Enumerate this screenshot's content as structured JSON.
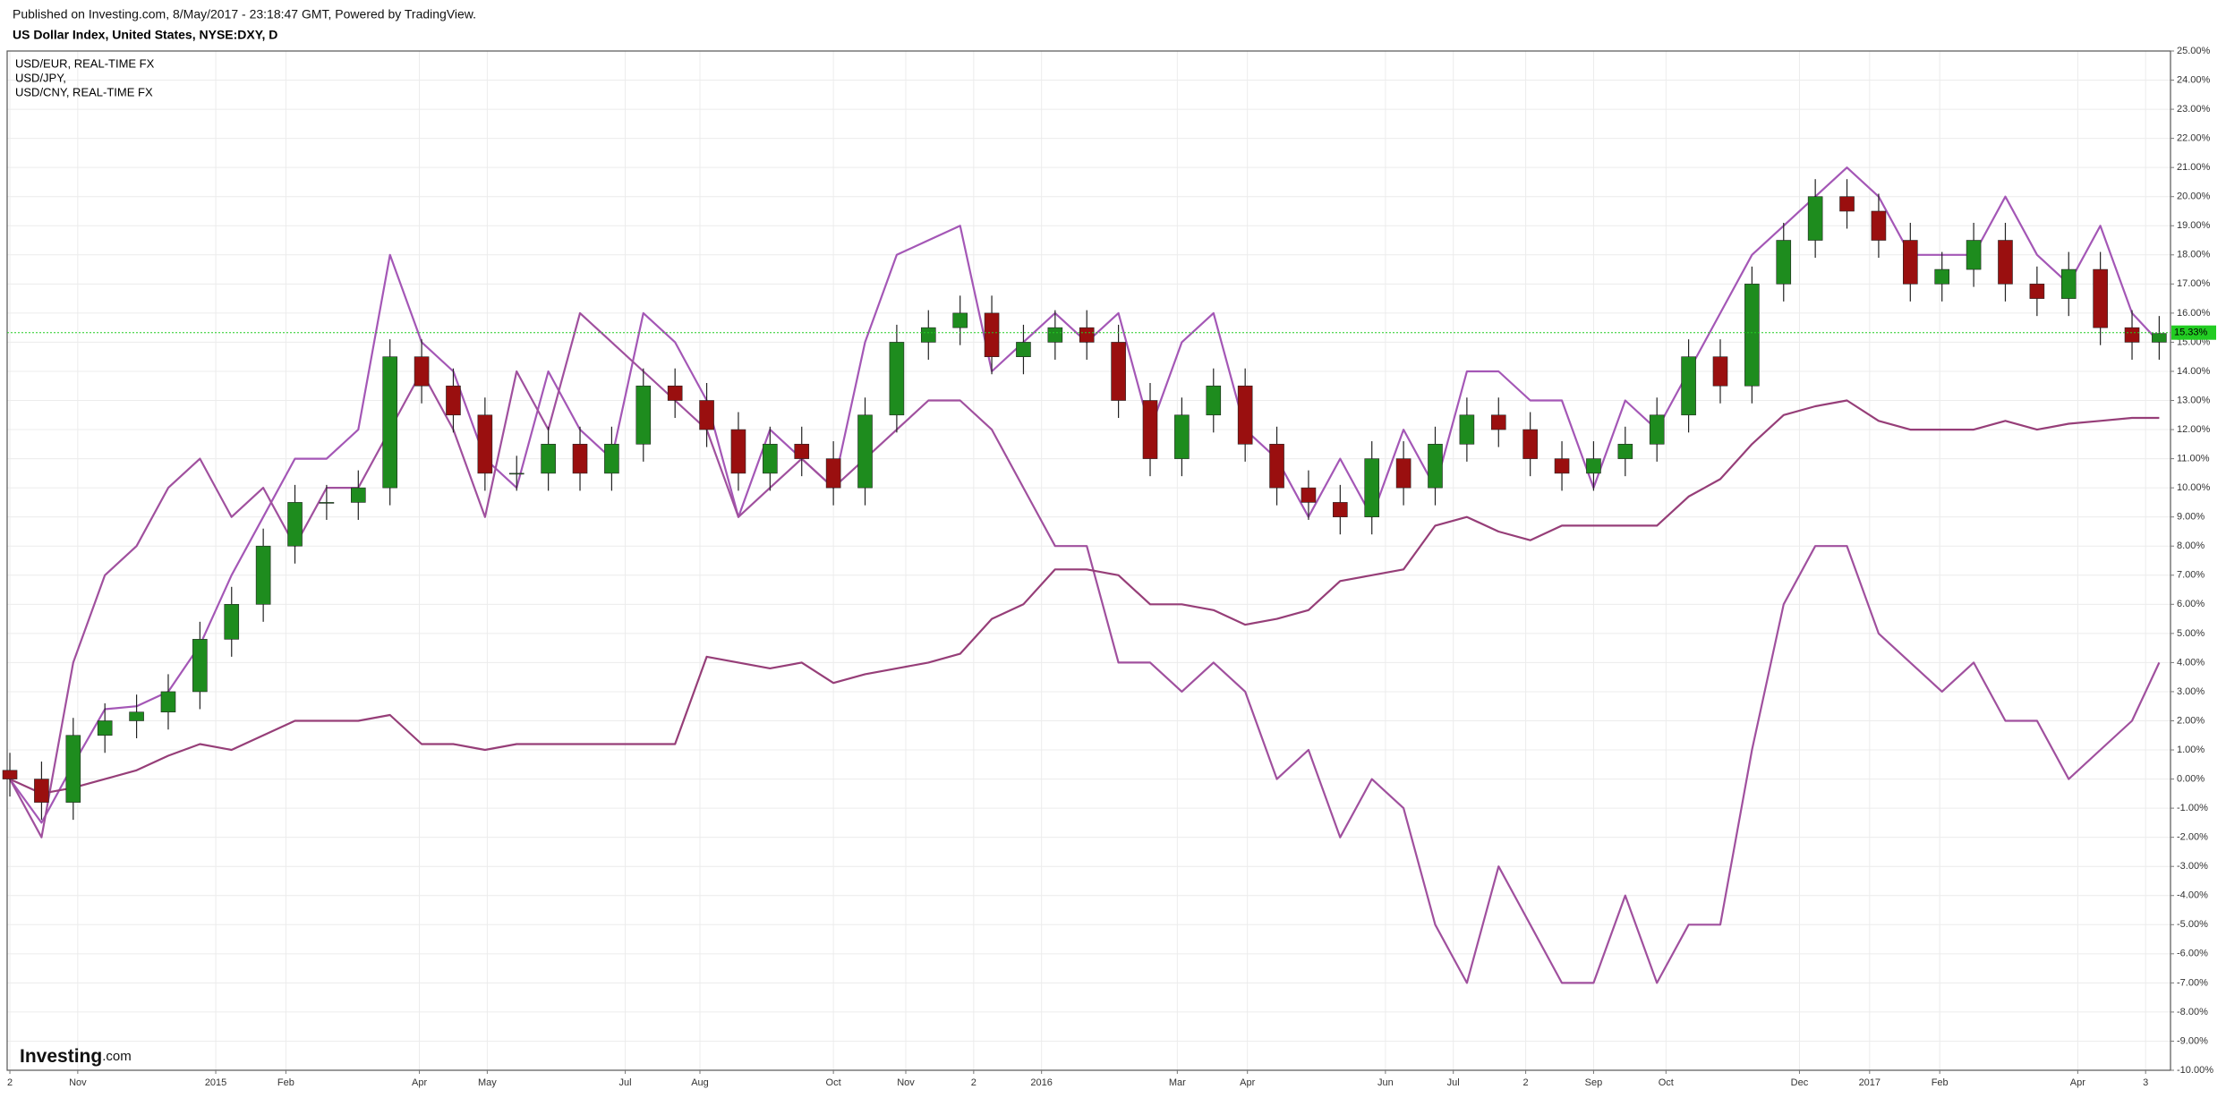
{
  "header": {
    "published": "Published on Investing.com, 8/May/2017 - 23:18:47 GMT, Powered by TradingView."
  },
  "logo": {
    "name": "Investing",
    "suffix": ".com"
  },
  "chart_data": {
    "type": "candlestick",
    "title": "US Dollar Index, United States, NYSE:DXY, D",
    "xlim": [
      -1.2,
      955
    ],
    "xticks": [
      {
        "value": 0,
        "label": "2"
      },
      {
        "value": 30,
        "label": "Nov"
      },
      {
        "value": 91,
        "label": "2015"
      },
      {
        "value": 122,
        "label": "Feb"
      },
      {
        "value": 181,
        "label": "Apr"
      },
      {
        "value": 211,
        "label": "May"
      },
      {
        "value": 272,
        "label": "Jul"
      },
      {
        "value": 305,
        "label": "Aug"
      },
      {
        "value": 364,
        "label": "Oct"
      },
      {
        "value": 396,
        "label": "Nov"
      },
      {
        "value": 426,
        "label": "2"
      },
      {
        "value": 456,
        "label": "2016"
      },
      {
        "value": 516,
        "label": "Mar"
      },
      {
        "value": 547,
        "label": "Apr"
      },
      {
        "value": 608,
        "label": "Jun"
      },
      {
        "value": 638,
        "label": "Jul"
      },
      {
        "value": 670,
        "label": "2"
      },
      {
        "value": 700,
        "label": "Sep"
      },
      {
        "value": 732,
        "label": "Oct"
      },
      {
        "value": 791,
        "label": "Dec"
      },
      {
        "value": 822,
        "label": "2017"
      },
      {
        "value": 853,
        "label": "Feb"
      },
      {
        "value": 914,
        "label": "Apr"
      },
      {
        "value": 944,
        "label": "3"
      }
    ],
    "ylim": [
      -10,
      25
    ],
    "yticks": [
      {
        "value": -10,
        "label": "-10.00%"
      },
      {
        "value": -9,
        "label": "-9.00%"
      },
      {
        "value": -8,
        "label": "-8.00%"
      },
      {
        "value": -7,
        "label": "-7.00%"
      },
      {
        "value": -6,
        "label": "-6.00%"
      },
      {
        "value": -5,
        "label": "-5.00%"
      },
      {
        "value": -4,
        "label": "-4.00%"
      },
      {
        "value": -3,
        "label": "-3.00%"
      },
      {
        "value": -2,
        "label": "-2.00%"
      },
      {
        "value": -1,
        "label": "-1.00%"
      },
      {
        "value": 0,
        "label": "0.00%"
      },
      {
        "value": 1,
        "label": "1.00%"
      },
      {
        "value": 2,
        "label": "2.00%"
      },
      {
        "value": 3,
        "label": "3.00%"
      },
      {
        "value": 4,
        "label": "4.00%"
      },
      {
        "value": 5,
        "label": "5.00%"
      },
      {
        "value": 6,
        "label": "6.00%"
      },
      {
        "value": 7,
        "label": "7.00%"
      },
      {
        "value": 8,
        "label": "8.00%"
      },
      {
        "value": 9,
        "label": "9.00%"
      },
      {
        "value": 10,
        "label": "10.00%"
      },
      {
        "value": 11,
        "label": "11.00%"
      },
      {
        "value": 12,
        "label": "12.00%"
      },
      {
        "value": 13,
        "label": "13.00%"
      },
      {
        "value": 14,
        "label": "14.00%"
      },
      {
        "value": 15,
        "label": "15.00%"
      },
      {
        "value": 16,
        "label": "16.00%"
      },
      {
        "value": 17,
        "label": "17.00%"
      },
      {
        "value": 18,
        "label": "18.00%"
      },
      {
        "value": 19,
        "label": "19.00%"
      },
      {
        "value": 20,
        "label": "20.00%"
      },
      {
        "value": 21,
        "label": "21.00%"
      },
      {
        "value": 22,
        "label": "22.00%"
      },
      {
        "value": 23,
        "label": "23.00%"
      },
      {
        "value": 24,
        "label": "24.00%"
      },
      {
        "value": 25,
        "label": "25.00%"
      }
    ],
    "grid": true,
    "x": [
      0,
      14,
      28,
      42,
      56,
      70,
      84,
      98,
      112,
      126,
      140,
      154,
      168,
      182,
      196,
      210,
      224,
      238,
      252,
      266,
      280,
      294,
      308,
      322,
      336,
      350,
      364,
      378,
      392,
      406,
      420,
      434,
      448,
      462,
      476,
      490,
      504,
      518,
      532,
      546,
      560,
      574,
      588,
      602,
      616,
      630,
      644,
      658,
      672,
      686,
      700,
      714,
      728,
      742,
      756,
      770,
      784,
      798,
      812,
      826,
      840,
      854,
      868,
      882,
      896,
      910,
      924,
      938,
      950
    ],
    "ohlc": {
      "up_color": "#1e8c1e",
      "down_color": "#9a0f0f",
      "open": [
        0.3,
        0,
        -0.8,
        1.5,
        2,
        2.3,
        3,
        4.8,
        6,
        8,
        9.5,
        9.5,
        10,
        14.5,
        13.5,
        12.5,
        10.5,
        10.5,
        11.5,
        10.5,
        11.5,
        13.5,
        13,
        12,
        10.5,
        11.5,
        11,
        10,
        12.5,
        15,
        15.5,
        16,
        14.5,
        15,
        15.5,
        15,
        13,
        11,
        12.5,
        13.5,
        11.5,
        10,
        9.5,
        9,
        11,
        10,
        11.5,
        12.5,
        12,
        11,
        10.5,
        11,
        11.5,
        12.5,
        14.5,
        13.5,
        17,
        18.5,
        20,
        19.5,
        18.5,
        17,
        17.5,
        18.5,
        17,
        16.5,
        17.5,
        15.5,
        15
      ],
      "high": [
        0.9,
        0.6,
        2.1,
        2.6,
        2.9,
        3.6,
        5.4,
        6.6,
        8.6,
        10.1,
        10.1,
        10.6,
        15.1,
        15.1,
        14.1,
        13.1,
        11.1,
        12.1,
        12.1,
        12.1,
        14.1,
        14.1,
        13.6,
        12.6,
        12.1,
        12.1,
        11.6,
        13.1,
        15.6,
        16.1,
        16.6,
        16.6,
        15.6,
        16.1,
        16.1,
        15.6,
        13.6,
        13.1,
        14.1,
        14.1,
        12.1,
        10.6,
        10.1,
        11.6,
        11.6,
        12.1,
        13.1,
        13.1,
        12.6,
        11.6,
        11.6,
        12.1,
        13.1,
        15.1,
        15.1,
        17.6,
        19.1,
        20.6,
        20.6,
        20.1,
        19.1,
        18.1,
        19.1,
        19.1,
        17.6,
        18.1,
        18.1,
        16.1,
        15.9
      ],
      "low": [
        -0.6,
        -1.4,
        -1.4,
        0.9,
        1.4,
        1.7,
        2.4,
        4.2,
        5.4,
        7.4,
        8.9,
        8.9,
        9.4,
        12.9,
        11.9,
        9.9,
        9.9,
        9.9,
        9.9,
        9.9,
        10.9,
        12.4,
        11.4,
        9.9,
        9.9,
        10.4,
        9.4,
        9.4,
        11.9,
        14.4,
        14.9,
        13.9,
        13.9,
        14.4,
        14.4,
        12.4,
        10.4,
        10.4,
        11.9,
        10.9,
        9.4,
        8.9,
        8.4,
        8.4,
        9.4,
        9.4,
        10.9,
        11.4,
        10.4,
        9.9,
        9.9,
        10.4,
        10.9,
        11.9,
        12.9,
        12.9,
        16.4,
        17.9,
        18.9,
        17.9,
        16.4,
        16.4,
        16.9,
        16.4,
        15.9,
        15.9,
        14.9,
        14.4,
        14.4
      ],
      "close": [
        0,
        -0.8,
        1.5,
        2,
        2.3,
        3,
        4.8,
        6,
        8,
        9.5,
        9.5,
        10,
        14.5,
        13.5,
        12.5,
        10.5,
        10.5,
        11.5,
        10.5,
        11.5,
        13.5,
        13,
        12,
        10.5,
        11.5,
        11,
        10,
        12.5,
        15,
        15.5,
        16,
        14.5,
        15,
        15.5,
        15,
        13,
        11,
        12.5,
        13.5,
        11.5,
        10,
        9.5,
        9,
        11,
        10,
        11.5,
        12.5,
        12,
        11,
        10.5,
        11,
        11.5,
        12.5,
        14.5,
        13.5,
        17,
        18.5,
        20,
        19.5,
        18.5,
        17,
        17.5,
        18.5,
        17,
        16.5,
        17.5,
        15.5,
        15,
        15.3
      ]
    },
    "series": [
      {
        "name": "USD/EUR, REAL-TIME FX",
        "color": "#a457b6",
        "values": [
          0,
          -1.5,
          0.5,
          2.4,
          2.5,
          3,
          4.6,
          7,
          9,
          11,
          11,
          12,
          18,
          15,
          14,
          11,
          10,
          14,
          12,
          11,
          16,
          15,
          13,
          9,
          12,
          11,
          10,
          15,
          18,
          18.5,
          19,
          14,
          15,
          16,
          15,
          16,
          12,
          15,
          16,
          12,
          11,
          9,
          11,
          9,
          12,
          10,
          14,
          14,
          13,
          13,
          10,
          13,
          12,
          14,
          16,
          18,
          19,
          20,
          21,
          20,
          18,
          18,
          18,
          20,
          18,
          17,
          19,
          16,
          15
        ]
      },
      {
        "name": "USD/JPY,",
        "color": "#a0509e",
        "values": [
          0,
          -2,
          4,
          7,
          8,
          10,
          11,
          9,
          10,
          8,
          10,
          10,
          12,
          14,
          12,
          9,
          14,
          12,
          16,
          15,
          14,
          13,
          12,
          9,
          10,
          11,
          10,
          11,
          12,
          13,
          13,
          12,
          10,
          8,
          8,
          4,
          4,
          3,
          4,
          3,
          0,
          1,
          -2,
          0,
          -1,
          -5,
          -7,
          -3,
          -5,
          -7,
          -7,
          -4,
          -7,
          -5,
          -5,
          1,
          6,
          8,
          8,
          5,
          4,
          3,
          4,
          2,
          2,
          0,
          1,
          2,
          4
        ]
      },
      {
        "name": "USD/CNY, REAL-TIME FX",
        "color": "#963e78",
        "values": [
          0,
          -0.5,
          -0.3,
          0,
          0.3,
          0.8,
          1.2,
          1,
          1.5,
          2,
          2,
          2,
          2.2,
          1.2,
          1.2,
          1,
          1.2,
          1.2,
          1.2,
          1.2,
          1.2,
          1.2,
          4.2,
          4,
          3.8,
          4,
          3.3,
          3.6,
          3.8,
          4,
          4.3,
          5.5,
          6,
          7.2,
          7.2,
          7,
          6,
          6,
          5.8,
          5.3,
          5.5,
          5.8,
          6.8,
          7,
          7.2,
          8.7,
          9,
          8.5,
          8.2,
          8.7,
          8.7,
          8.7,
          8.7,
          9.7,
          10.3,
          11.5,
          12.5,
          12.8,
          13,
          12.3,
          12,
          12,
          12,
          12.3,
          12,
          12.2,
          12.3,
          12.4,
          12.4
        ]
      }
    ],
    "price_line": {
      "value": 15.33,
      "label": "15.33%",
      "color": "#22cc22"
    }
  }
}
